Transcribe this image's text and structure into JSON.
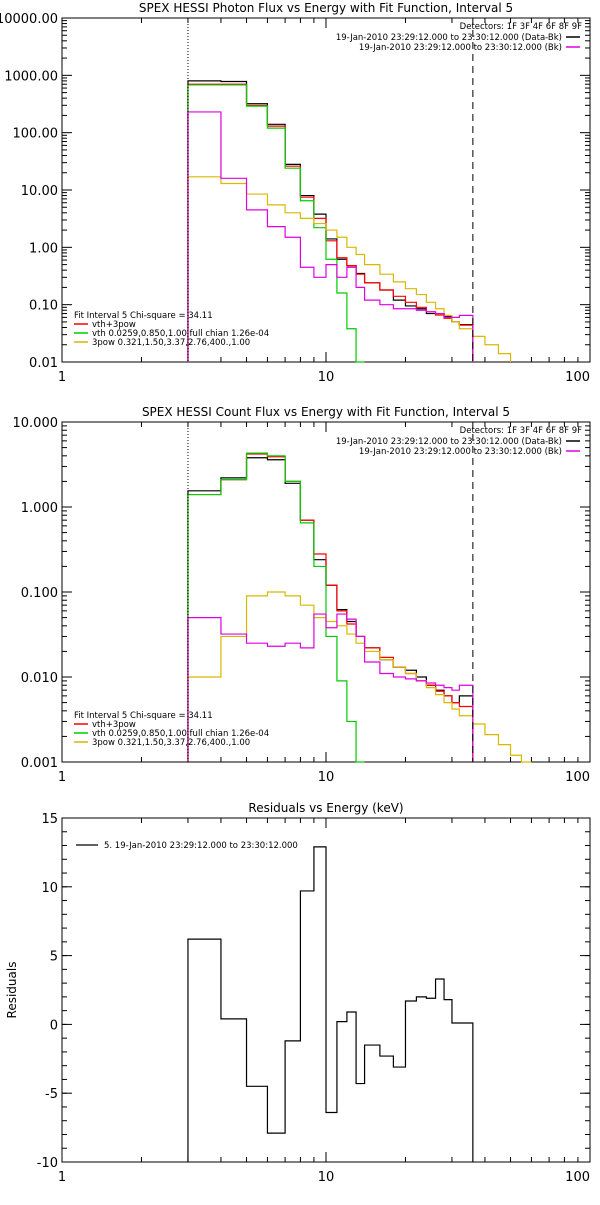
{
  "chart_data": [
    {
      "type": "line",
      "title": "SPEX HESSI Photon Flux vs Energy with Fit Function, Interval 5",
      "xscale": "log",
      "yscale": "log",
      "xlim": [
        1,
        100
      ],
      "ylim": [
        0.01,
        10000
      ],
      "x_ticks": [
        {
          "v": 1,
          "label": "1"
        },
        {
          "v": 10,
          "label": "10"
        },
        {
          "v": 100,
          "label": "100"
        }
      ],
      "y_ticks": [
        {
          "v": 0.01,
          "label": "0.01"
        },
        {
          "v": 0.1,
          "label": "0.10"
        },
        {
          "v": 1,
          "label": "1.00"
        },
        {
          "v": 10,
          "label": "10.00"
        },
        {
          "v": 100,
          "label": "100.00"
        },
        {
          "v": 1000,
          "label": "1000.00"
        },
        {
          "v": 10000,
          "label": "10000.00"
        }
      ],
      "vlines": [
        {
          "x": 3,
          "style": "dotted"
        },
        {
          "x": 36,
          "style": "dashed"
        }
      ],
      "detectors": "Detectors: 1F 3F 4F 6F 8F 9F",
      "legend_top": [
        {
          "label": "19-Jan-2010 23:29:12.000 to 23:30:12.000 (Data-Bk)",
          "color": "#000000"
        },
        {
          "label": "19-Jan-2010 23:29:12.000 to 23:30:12.000 (Bk)",
          "color": "#e000e0"
        }
      ],
      "fit_header": "Fit Interval 5   Chi-square = 34.11",
      "legend_fit": [
        {
          "label": "vth+3pow",
          "color": "#ff0000"
        },
        {
          "label": "vth 0.0259,0.850,1.00  full chian 1.26e-04",
          "color": "#00cc00"
        },
        {
          "label": "3pow 0.321,1.50,3.37,2.76,400.,1.00",
          "color": "#d9b800"
        }
      ],
      "series": [
        {
          "color": "#000000",
          "edges": [
            3,
            4,
            5,
            6,
            7,
            8,
            9,
            10,
            11,
            12,
            13,
            14,
            16,
            18,
            20,
            22,
            24,
            26,
            28,
            30,
            32,
            36
          ],
          "values": [
            800,
            780,
            320,
            140,
            28,
            8,
            3.8,
            1.4,
            0.62,
            0.48,
            0.35,
            0.24,
            0.18,
            0.12,
            0.095,
            0.085,
            0.07,
            0.07,
            0.062,
            0.05,
            0.045
          ]
        },
        {
          "color": "#ff0000",
          "edges": [
            3,
            4,
            5,
            6,
            7,
            8,
            9,
            10,
            11,
            12,
            13,
            14,
            16,
            18,
            20,
            22,
            24,
            26,
            28,
            30,
            32,
            36
          ],
          "values": [
            700,
            700,
            300,
            130,
            26,
            7.5,
            3.2,
            1.3,
            0.66,
            0.48,
            0.34,
            0.24,
            0.18,
            0.14,
            0.11,
            0.09,
            0.075,
            0.066,
            0.058,
            0.05,
            0.044
          ]
        },
        {
          "color": "#00cc00",
          "edges": [
            3,
            4,
            5,
            6,
            7,
            8,
            9,
            10,
            11,
            12,
            13,
            14
          ],
          "values": [
            680,
            680,
            290,
            120,
            24,
            6.5,
            2.2,
            0.62,
            0.16,
            0.038,
            0.01
          ]
        },
        {
          "color": "#d9b800",
          "edges": [
            3,
            4,
            5,
            6,
            7,
            8,
            9,
            10,
            11,
            12,
            13,
            14,
            16,
            18,
            20,
            22,
            24,
            26,
            28,
            30,
            32,
            36,
            40,
            45,
            50
          ],
          "values": [
            17,
            13,
            8.5,
            5.5,
            4,
            3.2,
            2.6,
            2,
            1.5,
            1,
            0.75,
            0.5,
            0.34,
            0.25,
            0.19,
            0.15,
            0.11,
            0.085,
            0.065,
            0.05,
            0.038,
            0.028,
            0.02,
            0.014
          ]
        },
        {
          "color": "#e000e0",
          "edges": [
            3,
            4,
            5,
            6,
            7,
            8,
            9,
            10,
            11,
            12,
            13,
            14,
            16,
            18,
            20,
            22,
            24,
            26,
            28,
            30,
            32,
            36
          ],
          "values": [
            230,
            16,
            4.5,
            2.3,
            1.5,
            0.45,
            0.3,
            0.5,
            0.3,
            0.45,
            0.2,
            0.12,
            0.1,
            0.085,
            0.085,
            0.08,
            0.075,
            0.07,
            0.06,
            0.06,
            0.065
          ]
        }
      ]
    },
    {
      "type": "line",
      "title": "SPEX HESSI Count Flux vs Energy with Fit Function, Interval 5",
      "xscale": "log",
      "yscale": "log",
      "xlim": [
        1,
        100
      ],
      "ylim": [
        0.001,
        10
      ],
      "x_ticks": [
        {
          "v": 1,
          "label": "1"
        },
        {
          "v": 10,
          "label": "10"
        },
        {
          "v": 100,
          "label": "100"
        }
      ],
      "y_ticks": [
        {
          "v": 0.001,
          "label": "0.001"
        },
        {
          "v": 0.01,
          "label": "0.010"
        },
        {
          "v": 0.1,
          "label": "0.100"
        },
        {
          "v": 1,
          "label": "1.000"
        },
        {
          "v": 10,
          "label": "10.000"
        }
      ],
      "vlines": [
        {
          "x": 3,
          "style": "dotted"
        },
        {
          "x": 36,
          "style": "dashed"
        }
      ],
      "detectors": "Detectors: 1F 3F 4F 6F 8F 9F",
      "legend_top": [
        {
          "label": "19-Jan-2010 23:29:12.000 to 23:30:12.000 (Data-Bk)",
          "color": "#000000"
        },
        {
          "label": "19-Jan-2010 23:29:12.000 to 23:30:12.000 (Bk)",
          "color": "#e000e0"
        }
      ],
      "fit_header": "Fit Interval 5   Chi-square = 34.11",
      "legend_fit": [
        {
          "label": "vth+3pow",
          "color": "#ff0000"
        },
        {
          "label": "vth 0.0259,0.850,1.00  full chian 1.26e-04",
          "color": "#00cc00"
        },
        {
          "label": "3pow 0.321,1.50,3.37,2.76,400.,1.00",
          "color": "#d9b800"
        }
      ],
      "series": [
        {
          "color": "#000000",
          "edges": [
            3,
            4,
            5,
            6,
            7,
            8,
            9,
            10,
            11,
            12,
            13,
            14,
            16,
            18,
            20,
            22,
            24,
            26,
            28,
            30,
            32,
            36
          ],
          "values": [
            1.55,
            2.2,
            3.8,
            3.6,
            1.9,
            0.7,
            0.24,
            0.12,
            0.062,
            0.045,
            0.03,
            0.022,
            0.016,
            0.013,
            0.012,
            0.01,
            0.008,
            0.007,
            0.006,
            0.005,
            0.006
          ]
        },
        {
          "color": "#ff0000",
          "edges": [
            3,
            4,
            5,
            6,
            7,
            8,
            9,
            10,
            11,
            12,
            13,
            14,
            16,
            18,
            20,
            22,
            24,
            26,
            28,
            30,
            32,
            36
          ],
          "values": [
            1.4,
            2.1,
            4.2,
            3.9,
            2,
            0.7,
            0.28,
            0.12,
            0.06,
            0.042,
            0.03,
            0.022,
            0.017,
            0.013,
            0.011,
            0.009,
            0.008,
            0.0068,
            0.006,
            0.005,
            0.0045
          ]
        },
        {
          "color": "#00cc00",
          "edges": [
            3,
            4,
            5,
            6,
            7,
            8,
            9,
            10,
            11,
            12,
            13,
            14
          ],
          "values": [
            1.4,
            2.1,
            4.3,
            4,
            2,
            0.65,
            0.2,
            0.03,
            0.009,
            0.003,
            0.001
          ]
        },
        {
          "color": "#d9b800",
          "edges": [
            3,
            4,
            5,
            6,
            7,
            8,
            9,
            10,
            11,
            12,
            13,
            14,
            16,
            18,
            20,
            22,
            24,
            26,
            28,
            30,
            32,
            36,
            40,
            45,
            50,
            55,
            60
          ],
          "values": [
            0.01,
            0.03,
            0.09,
            0.1,
            0.09,
            0.07,
            0.05,
            0.045,
            0.04,
            0.032,
            0.025,
            0.02,
            0.016,
            0.013,
            0.011,
            0.009,
            0.0075,
            0.0062,
            0.005,
            0.0042,
            0.0035,
            0.0028,
            0.0021,
            0.0016,
            0.0012,
            0.0009
          ]
        },
        {
          "color": "#e000e0",
          "edges": [
            3,
            4,
            5,
            6,
            7,
            8,
            9,
            10,
            11,
            12,
            13,
            14,
            16,
            18,
            20,
            22,
            24,
            26,
            28,
            30,
            32,
            36
          ],
          "values": [
            0.05,
            0.032,
            0.025,
            0.023,
            0.025,
            0.022,
            0.055,
            0.038,
            0.055,
            0.048,
            0.03,
            0.015,
            0.011,
            0.01,
            0.0095,
            0.009,
            0.0085,
            0.008,
            0.0075,
            0.007,
            0.008
          ]
        }
      ]
    },
    {
      "type": "line",
      "title": "Residuals vs Energy (keV)",
      "xscale": "log",
      "yscale": "linear",
      "xlim": [
        1,
        100
      ],
      "ylim": [
        -10,
        15
      ],
      "ylabel": "Residuals",
      "x_ticks": [
        {
          "v": 1,
          "label": "1"
        },
        {
          "v": 10,
          "label": "10"
        },
        {
          "v": 100,
          "label": "100"
        }
      ],
      "y_ticks": [
        {
          "v": -10,
          "label": "-10"
        },
        {
          "v": -5,
          "label": "-5"
        },
        {
          "v": 0,
          "label": "0"
        },
        {
          "v": 5,
          "label": "5"
        },
        {
          "v": 10,
          "label": "10"
        },
        {
          "v": 15,
          "label": "15"
        }
      ],
      "legend": "5. 19-Jan-2010 23:29:12.000 to 23:30:12.000",
      "series": [
        {
          "color": "#000000",
          "edges": [
            3,
            4,
            5,
            6,
            7,
            8,
            9,
            10,
            11,
            12,
            13,
            14,
            16,
            18,
            20,
            22,
            24,
            26,
            28,
            30,
            32,
            36
          ],
          "values": [
            6.2,
            0.4,
            -4.5,
            -7.9,
            -1.2,
            9.7,
            12.9,
            -6.4,
            0.2,
            0.9,
            -4.3,
            -1.5,
            -2.3,
            -3.1,
            1.7,
            2,
            1.9,
            3.3,
            1.8,
            0.1,
            0.1
          ]
        }
      ]
    }
  ]
}
